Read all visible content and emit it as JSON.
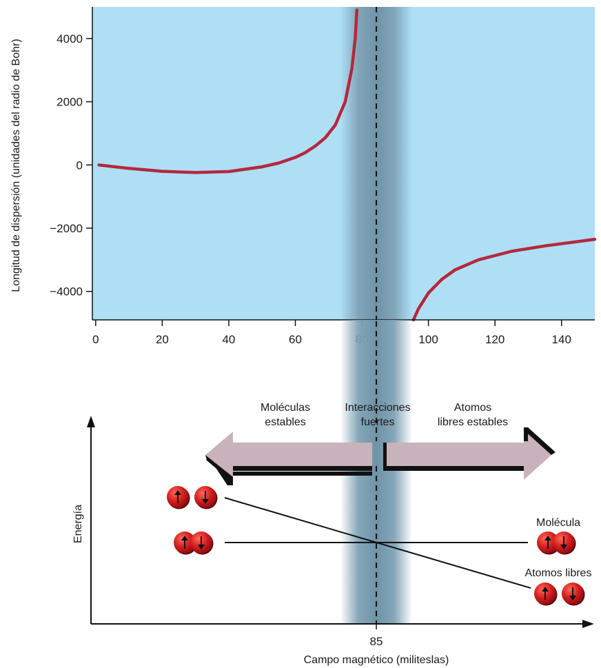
{
  "chart_data": [
    {
      "type": "line",
      "ylabel": "Longitud de dispersión (unidades del radio de Bohr)",
      "xlabel": "",
      "xlim": [
        -1,
        150
      ],
      "ylim": [
        -4900,
        5000
      ],
      "xticks": [
        0,
        20,
        40,
        60,
        80,
        100,
        120,
        140
      ],
      "yticks": [
        -4000,
        -2000,
        0,
        2000,
        4000
      ],
      "ytick_labels": [
        "−4000",
        "−2000",
        "0",
        "2000",
        "4000"
      ],
      "resonance_field": 85,
      "background_color": "#aedff5",
      "band_color": "#7fa2b5",
      "curve_color": "#b5283d",
      "series": [
        {
          "name": "",
          "points": [
            [
              1,
              0
            ],
            [
              10,
              -110
            ],
            [
              20,
              -200
            ],
            [
              30,
              -240
            ],
            [
              40,
              -210
            ],
            [
              50,
              -60
            ],
            [
              55,
              60
            ],
            [
              60,
              240
            ],
            [
              63,
              390
            ],
            [
              66,
              600
            ],
            [
              69,
              860
            ],
            [
              72,
              1260
            ],
            [
              75,
              2000
            ],
            [
              77,
              3050
            ],
            [
              78,
              4000
            ],
            [
              78.5,
              4900
            ]
          ]
        },
        {
          "name": "",
          "points": [
            [
              95.5,
              -4900
            ],
            [
              97,
              -4550
            ],
            [
              100,
              -4050
            ],
            [
              104,
              -3620
            ],
            [
              108,
              -3320
            ],
            [
              115,
              -3000
            ],
            [
              125,
              -2730
            ],
            [
              135,
              -2560
            ],
            [
              150,
              -2350
            ]
          ]
        }
      ]
    },
    {
      "type": "diagram",
      "ylabel": "Energía",
      "xlabel": "Campo magnético (militeslas)",
      "x_marker_label": "85",
      "arrows": {
        "left": {
          "label_line1": "Moléculas",
          "label_line2": "estables"
        },
        "center": {
          "label_line1": "Interacciones",
          "label_line2": "fuertes"
        },
        "right": {
          "label_line1": "Atomos",
          "label_line2": "libres estables"
        }
      },
      "level_labels": {
        "molecule": "Molécula",
        "free_atoms": "Atomos libres"
      },
      "arrow_color": "#c8b2bb",
      "atom_color": "#d41e1e"
    }
  ]
}
